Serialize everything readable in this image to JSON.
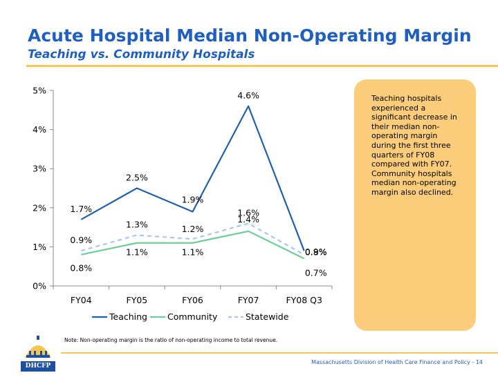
{
  "header": {
    "title": "Acute Hospital Median Non-Operating Margin",
    "subtitle": "Teaching vs. Community Hospitals"
  },
  "callout": {
    "text": "Teaching hospitals experienced a significant decrease in their median non-operating margin during the first three quarters of FY08 compared with FY07. Community hospitals median non-operating margin also declined."
  },
  "note": "Note: Non-operating margin is the ratio of non-operating income to total revenue.",
  "footer": "Massachusetts Division of Health Care Finance and Policy - 14",
  "logo": {
    "text": "DHCFP"
  },
  "colors": {
    "title": "#1f5fbf",
    "rule": "#f6c653",
    "callout": "#fbcc7a",
    "teaching": "#1f5fae",
    "community": "#6ccf9a",
    "statewide": "#a9c6ee"
  },
  "chart_data": {
    "type": "line",
    "title": "",
    "xlabel": "",
    "ylabel": "",
    "categories": [
      "FY04",
      "FY05",
      "FY06",
      "FY07",
      "FY08 Q3"
    ],
    "ylim": [
      0,
      5
    ],
    "yticks": [
      0,
      1,
      2,
      3,
      4,
      5
    ],
    "ytick_labels": [
      "0%",
      "1%",
      "2%",
      "3%",
      "4%",
      "5%"
    ],
    "legend_position": "bottom",
    "series": [
      {
        "name": "Teaching",
        "values": [
          1.7,
          2.5,
          1.9,
          4.6,
          0.9
        ],
        "labels": [
          "1.7%",
          "2.5%",
          "1.9%",
          "4.6%",
          "0.9%"
        ],
        "style": "solid"
      },
      {
        "name": "Community",
        "values": [
          0.8,
          1.1,
          1.1,
          1.4,
          0.7
        ],
        "labels": [
          "0.8%",
          "1.1%",
          "1.1%",
          "1.4%",
          "0.7%"
        ],
        "style": "solid"
      },
      {
        "name": "Statewide",
        "values": [
          0.9,
          1.3,
          1.2,
          1.6,
          0.8
        ],
        "labels": [
          "0.9%",
          "1.3%",
          "1.2%",
          "1.6%",
          "0.8%"
        ],
        "style": "dashed"
      }
    ]
  }
}
